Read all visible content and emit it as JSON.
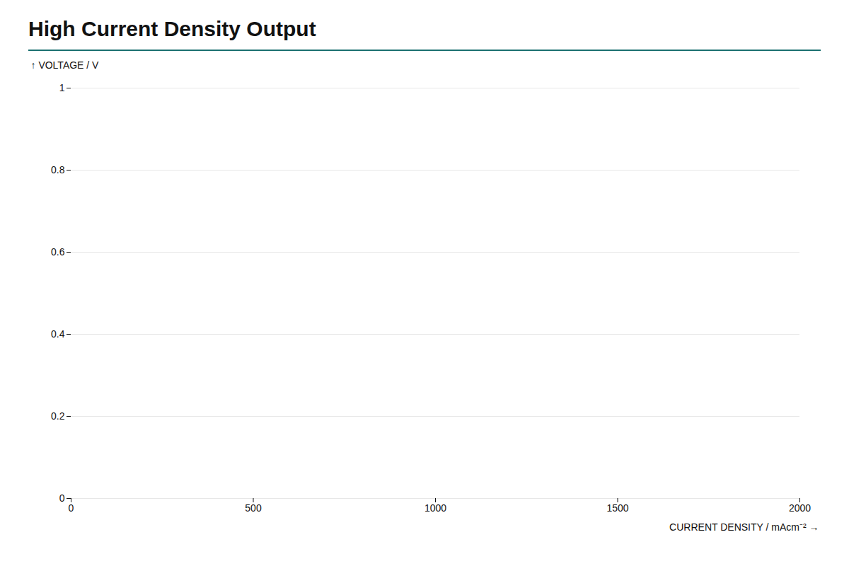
{
  "chart_data": {
    "type": "line",
    "title": "High Current Density Output",
    "x_label": "CURRENT DENSITY / mAcm⁻²",
    "y_label": "VOLTAGE / V",
    "xlim": [
      0,
      2000
    ],
    "ylim": [
      0,
      1
    ],
    "xticks": [
      0,
      500,
      1000,
      1500,
      2000
    ],
    "yticks": [
      0,
      0.2,
      0.4,
      0.6,
      0.8,
      1
    ],
    "grid": "y"
  }
}
